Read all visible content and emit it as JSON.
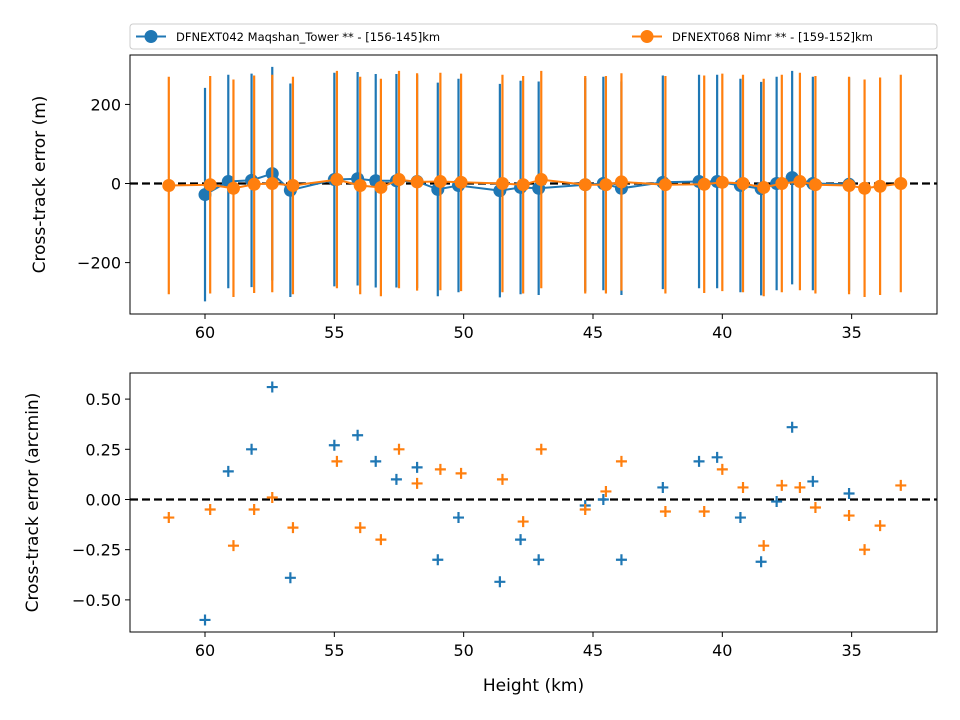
{
  "chart_data": [
    {
      "type": "line",
      "subtype": "errorbar",
      "xlabel": "",
      "ylabel": "Cross-track error (m)",
      "xlim": [
        62.9,
        31.7
      ],
      "ylim": [
        -330,
        325
      ],
      "x_inverted": true,
      "xticks": [
        60,
        55,
        50,
        45,
        40,
        35
      ],
      "xtick_labels": [
        "60",
        "55",
        "50",
        "45",
        "40",
        "35"
      ],
      "yticks": [
        200,
        0,
        -200
      ],
      "ytick_labels": [
        "200",
        "0",
        "−200"
      ],
      "zero_line": true,
      "legend": {
        "placement": "top",
        "columns": 2
      },
      "series": [
        {
          "name": "DFNEXT042 Maqshan_Tower **  - [156-145]km",
          "color": "#1f77b4",
          "marker": "circle",
          "x": [
            60.0,
            59.1,
            58.2,
            57.4,
            56.7,
            55.0,
            54.1,
            53.4,
            52.6,
            51.8,
            51.0,
            50.2,
            48.6,
            47.8,
            47.1,
            45.3,
            44.6,
            43.9,
            42.3,
            40.9,
            40.2,
            39.3,
            38.5,
            37.9,
            37.3,
            36.5,
            35.1
          ],
          "y": [
            -28,
            5,
            8,
            25,
            -17,
            10,
            12,
            7,
            7,
            5,
            -15,
            -5,
            -18,
            -10,
            -12,
            -3,
            0,
            -12,
            3,
            5,
            5,
            -5,
            -13,
            0,
            15,
            0,
            -2
          ],
          "yerr_upper": [
            270,
            270,
            270,
            270,
            270,
            270,
            270,
            270,
            270,
            270,
            270,
            270,
            270,
            270,
            270,
            270,
            270,
            270,
            270,
            270,
            270,
            270,
            270,
            270,
            270,
            270,
            270
          ],
          "yerr_lower": [
            270,
            270,
            270,
            270,
            270,
            270,
            270,
            270,
            270,
            270,
            270,
            270,
            270,
            270,
            270,
            270,
            270,
            270,
            270,
            270,
            270,
            270,
            270,
            270,
            270,
            270,
            270
          ]
        },
        {
          "name": "DFNEXT068 Nimr **  - [159-152]km",
          "color": "#ff7f0e",
          "marker": "circle",
          "x": [
            61.4,
            59.8,
            58.9,
            58.1,
            57.4,
            56.6,
            54.9,
            54.0,
            53.2,
            52.5,
            51.8,
            50.9,
            50.1,
            48.5,
            47.7,
            47.0,
            45.3,
            44.5,
            43.9,
            42.2,
            40.7,
            40.0,
            39.2,
            38.4,
            37.7,
            37.0,
            36.4,
            35.1,
            34.5,
            33.9,
            33.1
          ],
          "y": [
            -5,
            -3,
            -12,
            -2,
            0,
            -5,
            10,
            -5,
            -10,
            10,
            4,
            5,
            3,
            0,
            -3,
            10,
            -3,
            -3,
            4,
            -3,
            -2,
            3,
            0,
            -10,
            0,
            5,
            -3,
            -5,
            -12,
            -7,
            0
          ],
          "yerr_upper": [
            275,
            275,
            275,
            275,
            275,
            275,
            275,
            275,
            275,
            275,
            275,
            275,
            275,
            275,
            275,
            275,
            275,
            275,
            275,
            275,
            275,
            275,
            275,
            275,
            275,
            275,
            275,
            275,
            275,
            275,
            275
          ],
          "yerr_lower": [
            275,
            275,
            275,
            275,
            275,
            275,
            275,
            275,
            275,
            275,
            275,
            275,
            275,
            275,
            275,
            275,
            275,
            275,
            275,
            275,
            275,
            275,
            275,
            275,
            275,
            275,
            275,
            275,
            275,
            275,
            275
          ]
        }
      ]
    },
    {
      "type": "scatter",
      "xlabel": "Height (km)",
      "ylabel": "Cross-track error (arcmin)",
      "xlim": [
        62.9,
        31.7
      ],
      "ylim": [
        -0.66,
        0.63
      ],
      "x_inverted": true,
      "xticks": [
        60,
        55,
        50,
        45,
        40,
        35
      ],
      "xtick_labels": [
        "60",
        "55",
        "50",
        "45",
        "40",
        "35"
      ],
      "yticks": [
        0.5,
        0.25,
        0.0,
        -0.25,
        -0.5
      ],
      "ytick_labels": [
        "0.50",
        "0.25",
        "0.00",
        "−0.25",
        "−0.50"
      ],
      "zero_line": true,
      "series": [
        {
          "color": "#1f77b4",
          "marker": "plus",
          "x": [
            60.0,
            59.1,
            58.2,
            57.4,
            56.7,
            55.0,
            54.1,
            53.4,
            52.6,
            51.8,
            51.0,
            50.2,
            48.6,
            47.8,
            47.1,
            45.3,
            44.6,
            43.9,
            42.3,
            40.9,
            40.2,
            39.3,
            38.5,
            37.9,
            37.3,
            36.5,
            35.1
          ],
          "y": [
            -0.6,
            0.14,
            0.25,
            0.56,
            -0.39,
            0.27,
            0.32,
            0.19,
            0.1,
            0.16,
            -0.3,
            -0.09,
            -0.41,
            -0.2,
            -0.3,
            -0.03,
            0.0,
            -0.3,
            0.06,
            0.19,
            0.21,
            -0.09,
            -0.31,
            -0.01,
            0.36,
            0.09,
            0.03
          ]
        },
        {
          "color": "#ff7f0e",
          "marker": "plus",
          "x": [
            61.4,
            59.8,
            58.9,
            58.1,
            57.4,
            56.6,
            54.9,
            54.0,
            53.2,
            52.5,
            51.8,
            50.9,
            50.1,
            48.5,
            47.7,
            47.0,
            45.3,
            44.5,
            43.9,
            42.2,
            40.7,
            40.0,
            39.2,
            38.4,
            37.7,
            37.0,
            36.4,
            35.1,
            34.5,
            33.9,
            33.1
          ],
          "y": [
            -0.09,
            -0.05,
            -0.23,
            -0.05,
            0.01,
            -0.14,
            0.19,
            -0.14,
            -0.2,
            0.25,
            0.08,
            0.15,
            0.13,
            0.1,
            -0.11,
            0.25,
            -0.05,
            0.04,
            0.19,
            -0.06,
            -0.06,
            0.15,
            0.06,
            -0.23,
            0.07,
            0.06,
            -0.04,
            -0.08,
            -0.25,
            -0.13,
            0.07
          ]
        }
      ]
    }
  ]
}
